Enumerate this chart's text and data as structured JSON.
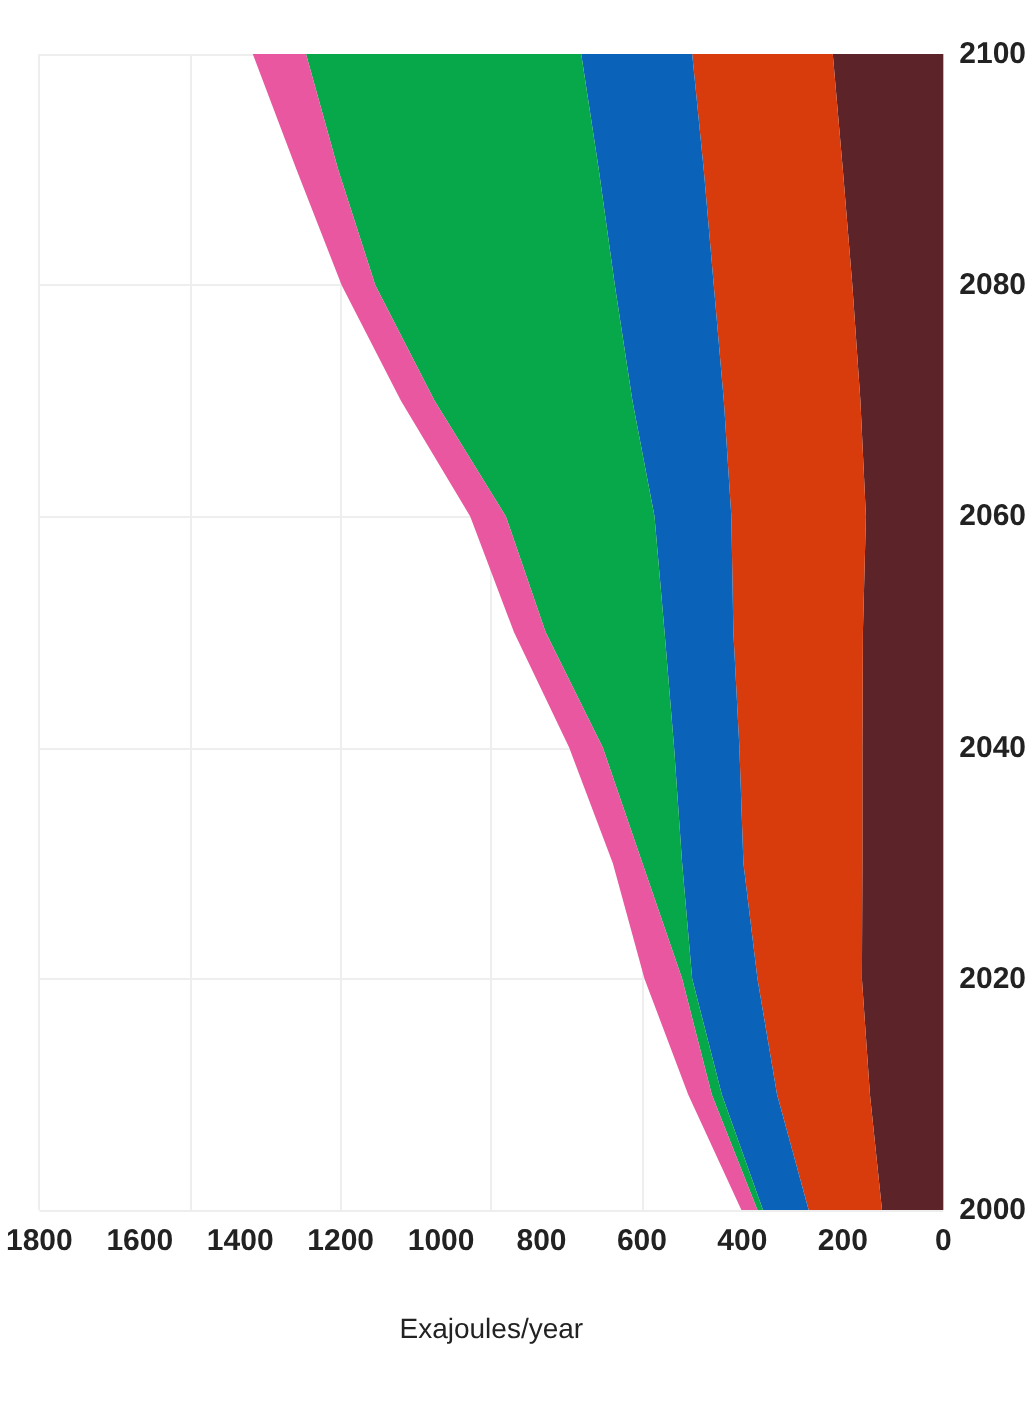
{
  "chart_data": {
    "type": "area",
    "orientation": "horizontal",
    "xlabel": "Exajoules/year",
    "stacked": true,
    "x": [
      2000,
      2010,
      2020,
      2030,
      2040,
      2050,
      2060,
      2070,
      2080,
      2090,
      2100
    ],
    "ylim": [
      2000,
      2100
    ],
    "yticks": [
      2000,
      2020,
      2040,
      2060,
      2080,
      2100
    ],
    "xlim": [
      1800,
      0
    ],
    "xticks": [
      1800,
      1600,
      1400,
      1200,
      1000,
      800,
      600,
      400,
      200,
      0
    ],
    "grid": true,
    "series": [
      {
        "color": "#5c2328",
        "values": [
          122,
          146,
          162,
          161,
          161,
          160,
          154,
          165,
          181,
          200,
          220
        ]
      },
      {
        "color": "#d83b0c",
        "values": [
          146,
          185,
          208,
          237,
          245,
          258,
          268,
          272,
          276,
          277,
          280
        ]
      },
      {
        "color": "#0a63b8",
        "values": [
          91,
          110,
          130,
          122,
          130,
          137,
          153,
          182,
          197,
          209,
          221
        ]
      },
      {
        "color": "#06a84a",
        "values": [
          11,
          20,
          20,
          79,
          142,
          237,
          296,
          394,
          477,
          519,
          548
        ]
      },
      {
        "color": "#e8579f",
        "values": [
          32,
          47,
          75,
          59,
          67,
          63,
          71,
          67,
          67,
          83,
          106
        ]
      }
    ]
  }
}
